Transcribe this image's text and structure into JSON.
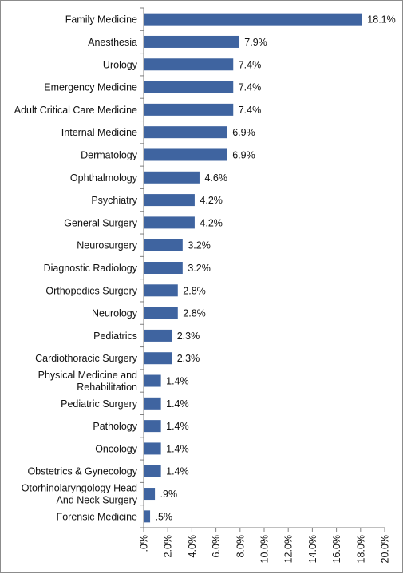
{
  "chart_data": {
    "type": "bar",
    "orientation": "horizontal",
    "title": "",
    "xlabel": "",
    "ylabel": "",
    "categories": [
      "Family Medicine",
      "Anesthesia",
      "Urology",
      "Emergency Medicine",
      "Adult Critical Care Medicine",
      "Internal Medicine",
      "Dermatology",
      "Ophthalmology",
      "Psychiatry",
      "General Surgery",
      "Neurosurgery",
      "Diagnostic Radiology",
      "Orthopedics Surgery",
      "Neurology",
      "Pediatrics",
      "Cardiothoracic Surgery",
      "Physical Medicine and Rehabilitation",
      "Pediatric Surgery",
      "Pathology",
      "Oncology",
      "Obstetrics & Gynecology",
      "Otorhinolaryngology Head And Neck Surgery",
      "Forensic Medicine"
    ],
    "category_lines": [
      [
        "Family Medicine"
      ],
      [
        "Anesthesia"
      ],
      [
        "Urology"
      ],
      [
        "Emergency Medicine"
      ],
      [
        "Adult Critical Care Medicine"
      ],
      [
        "Internal Medicine"
      ],
      [
        "Dermatology"
      ],
      [
        "Ophthalmology"
      ],
      [
        "Psychiatry"
      ],
      [
        "General Surgery"
      ],
      [
        "Neurosurgery"
      ],
      [
        "Diagnostic Radiology"
      ],
      [
        "Orthopedics Surgery"
      ],
      [
        "Neurology"
      ],
      [
        "Pediatrics"
      ],
      [
        "Cardiothoracic Surgery"
      ],
      [
        "Physical Medicine and",
        "Rehabilitation"
      ],
      [
        "Pediatric Surgery"
      ],
      [
        "Pathology"
      ],
      [
        "Oncology"
      ],
      [
        "Obstetrics & Gynecology"
      ],
      [
        "Otorhinolaryngology Head",
        "And Neck Surgery"
      ],
      [
        "Forensic Medicine"
      ]
    ],
    "values": [
      18.1,
      7.9,
      7.4,
      7.4,
      7.4,
      6.9,
      6.9,
      4.6,
      4.2,
      4.2,
      3.2,
      3.2,
      2.8,
      2.8,
      2.3,
      2.3,
      1.4,
      1.4,
      1.4,
      1.4,
      1.4,
      0.9,
      0.5
    ],
    "value_labels": [
      "18.1%",
      "7.9%",
      "7.4%",
      "7.4%",
      "7.4%",
      "6.9%",
      "6.9%",
      "4.6%",
      "4.2%",
      "4.2%",
      "3.2%",
      "3.2%",
      "2.8%",
      "2.8%",
      "2.3%",
      "2.3%",
      "1.4%",
      "1.4%",
      "1.4%",
      "1.4%",
      "1.4%",
      ".9%",
      ".5%"
    ],
    "xlim": [
      0,
      20
    ],
    "x_ticks": [
      ".0%",
      "2.0%",
      "4.0%",
      "6.0%",
      "8.0%",
      "10.0%",
      "12.0%",
      "14.0%",
      "16.0%",
      "18.0%",
      "20.0%"
    ],
    "grid": false,
    "legend": "none",
    "bar_color": "#3F64A0"
  }
}
